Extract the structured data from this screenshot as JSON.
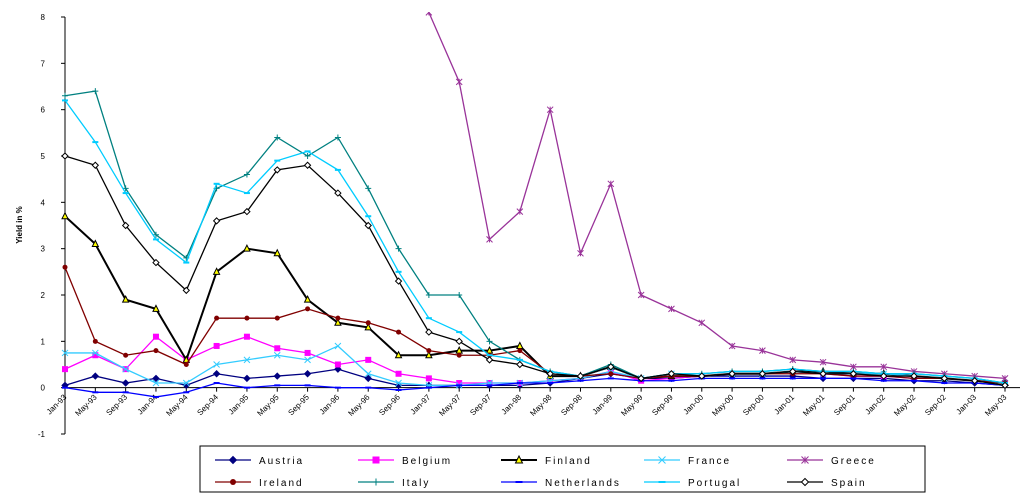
{
  "chart_data": {
    "type": "line",
    "y_label": "Yield in %",
    "categories": [
      "Jan-93",
      "May-93",
      "Sep-93",
      "Jan-94",
      "May-94",
      "Sep-94",
      "Jan-95",
      "May-95",
      "Sep-95",
      "Jan-96",
      "May-96",
      "Sep-96",
      "Jan-97",
      "May-97",
      "Sep-97",
      "Jan-98",
      "May-98",
      "Sep-98",
      "Jan-99",
      "May-99",
      "Sep-99",
      "Jan-00",
      "May-00",
      "Sep-00",
      "Jan-01",
      "May-01",
      "Sep-01",
      "Jan-02",
      "May-02",
      "Sep-02",
      "Jan-03",
      "May-03"
    ],
    "ylim": [
      -1,
      8
    ],
    "yticks": [
      -1,
      0,
      1,
      2,
      3,
      4,
      5,
      6,
      7,
      8
    ],
    "grid": false,
    "series": [
      {
        "name": "Austria",
        "color": "#000080",
        "marker": "diamond",
        "values": [
          0.05,
          0.25,
          0.1,
          0.2,
          0.05,
          0.3,
          0.2,
          0.25,
          0.3,
          0.4,
          0.2,
          0.05,
          0.05,
          0.05,
          0.05,
          0.05,
          0.1,
          0.2,
          0.3,
          0.2,
          0.2,
          0.25,
          0.25,
          0.25,
          0.25,
          0.2,
          0.2,
          0.2,
          0.15,
          0.15,
          0.1,
          0.05
        ]
      },
      {
        "name": "Belgium",
        "color": "#ff00ff",
        "marker": "square",
        "values": [
          0.4,
          0.7,
          0.4,
          1.1,
          0.6,
          0.9,
          1.1,
          0.85,
          0.75,
          0.5,
          0.6,
          0.3,
          0.2,
          0.1,
          0.1,
          0.1,
          0.15,
          0.2,
          0.35,
          0.15,
          0.2,
          0.25,
          0.3,
          0.3,
          0.35,
          0.3,
          0.25,
          0.25,
          0.2,
          0.2,
          0.15,
          0.1
        ]
      },
      {
        "name": "Finland",
        "color": "#000000",
        "marker": "triangle",
        "values": [
          3.7,
          3.1,
          1.9,
          1.7,
          0.6,
          2.5,
          3.0,
          2.9,
          1.9,
          1.4,
          1.3,
          0.7,
          0.7,
          0.8,
          0.8,
          0.9,
          0.25,
          0.25,
          0.45,
          0.2,
          0.25,
          0.25,
          0.3,
          0.3,
          0.35,
          0.35,
          0.3,
          0.3,
          0.25,
          0.2,
          0.15,
          0.1
        ]
      },
      {
        "name": "France",
        "color": "#33ccff",
        "marker": "cross",
        "values": [
          0.75,
          0.75,
          0.4,
          0.1,
          0.1,
          0.5,
          0.6,
          0.7,
          0.6,
          0.9,
          0.3,
          0.1,
          0.05,
          0.05,
          0.1,
          0.1,
          0.15,
          0.2,
          0.35,
          0.2,
          0.3,
          0.25,
          0.3,
          0.3,
          0.35,
          0.3,
          0.3,
          0.3,
          0.25,
          0.2,
          0.15,
          0.1
        ]
      },
      {
        "name": "Greece",
        "color": "#993399",
        "marker": "star",
        "values": [
          null,
          null,
          null,
          null,
          null,
          null,
          null,
          null,
          null,
          null,
          null,
          null,
          8.1,
          6.6,
          3.2,
          3.8,
          6.0,
          2.9,
          4.4,
          2.0,
          1.7,
          1.4,
          0.9,
          0.8,
          0.6,
          0.55,
          0.45,
          0.45,
          0.35,
          0.3,
          0.25,
          0.2
        ]
      },
      {
        "name": "Ireland",
        "color": "#800000",
        "marker": "circle",
        "values": [
          2.6,
          1.0,
          0.7,
          0.8,
          0.5,
          1.5,
          1.5,
          1.5,
          1.7,
          1.5,
          1.4,
          1.2,
          0.8,
          0.7,
          0.7,
          0.8,
          0.3,
          0.25,
          0.3,
          0.2,
          0.25,
          0.25,
          0.3,
          0.3,
          0.3,
          0.3,
          0.25,
          0.25,
          0.2,
          0.2,
          0.15,
          0.1
        ]
      },
      {
        "name": "Italy",
        "color": "#008080",
        "marker": "plus",
        "values": [
          6.3,
          6.4,
          4.3,
          3.3,
          2.8,
          4.3,
          4.6,
          5.4,
          5.0,
          5.4,
          4.3,
          3.0,
          2.0,
          2.0,
          1.0,
          0.6,
          0.35,
          0.25,
          0.5,
          0.2,
          0.3,
          0.3,
          0.35,
          0.35,
          0.4,
          0.35,
          0.35,
          0.3,
          0.3,
          0.25,
          0.2,
          0.1
        ]
      },
      {
        "name": "Netherlands",
        "color": "#0000ff",
        "marker": "dash",
        "values": [
          0.0,
          -0.1,
          -0.1,
          -0.2,
          -0.1,
          0.1,
          0.0,
          0.05,
          0.05,
          0.0,
          0.0,
          -0.05,
          0.0,
          0.05,
          0.05,
          0.1,
          0.1,
          0.15,
          0.2,
          0.15,
          0.15,
          0.2,
          0.2,
          0.2,
          0.2,
          0.2,
          0.2,
          0.15,
          0.15,
          0.1,
          0.1,
          0.05
        ]
      },
      {
        "name": "Portugal",
        "color": "#00ccff",
        "marker": "dash",
        "values": [
          6.2,
          5.3,
          4.2,
          3.2,
          2.7,
          4.4,
          4.2,
          4.9,
          5.1,
          4.7,
          3.7,
          2.5,
          1.5,
          1.2,
          0.7,
          0.6,
          0.35,
          0.25,
          0.45,
          0.2,
          0.3,
          0.3,
          0.35,
          0.35,
          0.4,
          0.35,
          0.35,
          0.3,
          0.3,
          0.25,
          0.2,
          0.1
        ]
      },
      {
        "name": "Spain",
        "color": "#000000",
        "marker": "open-diamond",
        "values": [
          5.0,
          4.8,
          3.5,
          2.7,
          2.1,
          3.6,
          3.8,
          4.7,
          4.8,
          4.2,
          3.5,
          2.3,
          1.2,
          1.0,
          0.6,
          0.5,
          0.3,
          0.25,
          0.45,
          0.2,
          0.3,
          0.25,
          0.3,
          0.3,
          0.35,
          0.3,
          0.3,
          0.25,
          0.25,
          0.2,
          0.15,
          0.05
        ]
      }
    ]
  }
}
